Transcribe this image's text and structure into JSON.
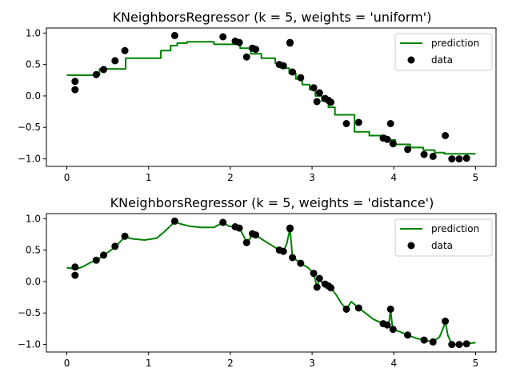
{
  "chart_data": [
    {
      "type": "line",
      "title": "KNeighborsRegressor (k = 5, weights = 'uniform')",
      "xlim": [
        -0.25,
        5.25
      ],
      "ylim": [
        -1.12,
        1.08
      ],
      "xticks": [
        0,
        1,
        2,
        3,
        4,
        5
      ],
      "yticks": [
        1.0,
        0.5,
        0.0,
        -0.5,
        -1.0
      ],
      "xtick_labels": [
        "0",
        "1",
        "2",
        "3",
        "4",
        "5"
      ],
      "ytick_labels": [
        "1.0",
        "0.5",
        "0.0",
        "−0.5",
        "−1.0"
      ],
      "grid": false,
      "legend": {
        "position": "top-right",
        "entries": [
          "prediction",
          "data"
        ]
      },
      "series": [
        {
          "name": "prediction",
          "kind": "line",
          "color": "#008000",
          "x": [
            0.0,
            0.4,
            0.4,
            0.72,
            0.72,
            1.15,
            1.15,
            1.27,
            1.27,
            1.35,
            1.35,
            1.47,
            1.47,
            1.8,
            1.8,
            2.12,
            2.12,
            2.25,
            2.25,
            2.38,
            2.38,
            2.55,
            2.55,
            2.62,
            2.62,
            2.72,
            2.72,
            2.8,
            2.8,
            2.88,
            2.88,
            2.97,
            2.97,
            3.04,
            3.04,
            3.12,
            3.12,
            3.2,
            3.2,
            3.28,
            3.28,
            3.52,
            3.52,
            3.7,
            3.7,
            3.9,
            3.9,
            4.02,
            4.02,
            4.2,
            4.2,
            4.36,
            4.36,
            4.5,
            4.5,
            4.62,
            4.62,
            5.0
          ],
          "y": [
            0.33,
            0.33,
            0.43,
            0.43,
            0.6,
            0.6,
            0.72,
            0.72,
            0.8,
            0.8,
            0.84,
            0.84,
            0.86,
            0.86,
            0.82,
            0.82,
            0.76,
            0.76,
            0.67,
            0.67,
            0.6,
            0.6,
            0.52,
            0.52,
            0.44,
            0.44,
            0.36,
            0.36,
            0.27,
            0.27,
            0.18,
            0.18,
            0.1,
            0.1,
            0.0,
            0.0,
            -0.08,
            -0.08,
            -0.18,
            -0.18,
            -0.3,
            -0.3,
            -0.57,
            -0.57,
            -0.63,
            -0.63,
            -0.7,
            -0.7,
            -0.77,
            -0.77,
            -0.82,
            -0.82,
            -0.86,
            -0.86,
            -0.9,
            -0.9,
            -0.92,
            -0.92
          ]
        },
        {
          "name": "data",
          "kind": "scatter",
          "color": "#000000",
          "x": [
            0.1,
            0.1,
            0.36,
            0.45,
            0.59,
            0.71,
            1.32,
            1.91,
            2.06,
            2.11,
            2.2,
            2.27,
            2.31,
            2.6,
            2.65,
            2.73,
            2.73,
            2.76,
            2.86,
            3.02,
            3.06,
            3.09,
            3.16,
            3.2,
            3.23,
            3.42,
            3.57,
            3.87,
            3.92,
            3.96,
            3.99,
            4.17,
            4.37,
            4.48,
            4.63,
            4.71,
            4.8,
            4.89
          ],
          "y": [
            0.23,
            0.1,
            0.34,
            0.42,
            0.56,
            0.72,
            0.96,
            0.94,
            0.87,
            0.85,
            0.62,
            0.76,
            0.74,
            0.5,
            0.48,
            0.85,
            0.84,
            0.38,
            0.29,
            0.13,
            -0.09,
            0.05,
            -0.04,
            -0.07,
            -0.1,
            -0.44,
            -0.42,
            -0.67,
            -0.69,
            -0.44,
            -0.76,
            -0.85,
            -0.93,
            -0.96,
            -0.63,
            -1.0,
            -1.0,
            -0.99
          ]
        }
      ]
    },
    {
      "type": "line",
      "title": "KNeighborsRegressor (k = 5, weights = 'distance')",
      "xlim": [
        -0.25,
        5.25
      ],
      "ylim": [
        -1.12,
        1.08
      ],
      "xticks": [
        0,
        1,
        2,
        3,
        4,
        5
      ],
      "yticks": [
        1.0,
        0.5,
        0.0,
        -0.5,
        -1.0
      ],
      "xtick_labels": [
        "0",
        "1",
        "2",
        "3",
        "4",
        "5"
      ],
      "ytick_labels": [
        "1.0",
        "0.5",
        "0.0",
        "−0.5",
        "−1.0"
      ],
      "grid": false,
      "legend": {
        "position": "top-right",
        "entries": [
          "prediction",
          "data"
        ]
      },
      "series": [
        {
          "name": "prediction",
          "kind": "line",
          "color": "#008000",
          "x": [
            0.0,
            0.05,
            0.09,
            0.1,
            0.11,
            0.2,
            0.3,
            0.36,
            0.41,
            0.45,
            0.52,
            0.59,
            0.65,
            0.71,
            0.8,
            0.95,
            1.1,
            1.2,
            1.28,
            1.32,
            1.38,
            1.5,
            1.65,
            1.8,
            1.91,
            1.98,
            2.06,
            2.11,
            2.16,
            2.2,
            2.24,
            2.27,
            2.31,
            2.4,
            2.5,
            2.6,
            2.65,
            2.69,
            2.72,
            2.73,
            2.74,
            2.76,
            2.8,
            2.86,
            2.95,
            3.02,
            3.06,
            3.09,
            3.12,
            3.16,
            3.2,
            3.23,
            3.3,
            3.36,
            3.42,
            3.48,
            3.57,
            3.65,
            3.75,
            3.87,
            3.92,
            3.945,
            3.96,
            3.975,
            3.99,
            4.08,
            4.17,
            4.27,
            4.37,
            4.48,
            4.56,
            4.61,
            4.63,
            4.66,
            4.71,
            4.8,
            4.89,
            5.0
          ],
          "y": [
            0.22,
            0.21,
            0.2,
            0.21,
            0.19,
            0.24,
            0.31,
            0.34,
            0.38,
            0.42,
            0.48,
            0.55,
            0.63,
            0.71,
            0.68,
            0.66,
            0.69,
            0.8,
            0.9,
            0.96,
            0.92,
            0.88,
            0.86,
            0.86,
            0.94,
            0.88,
            0.87,
            0.85,
            0.73,
            0.62,
            0.68,
            0.76,
            0.74,
            0.66,
            0.58,
            0.5,
            0.48,
            0.6,
            0.78,
            0.85,
            0.7,
            0.38,
            0.35,
            0.29,
            0.22,
            0.13,
            -0.09,
            0.05,
            -0.02,
            -0.04,
            -0.07,
            -0.1,
            -0.22,
            -0.35,
            -0.44,
            -0.32,
            -0.42,
            -0.5,
            -0.6,
            -0.67,
            -0.69,
            -0.62,
            -0.44,
            -0.63,
            -0.76,
            -0.8,
            -0.85,
            -0.9,
            -0.93,
            -0.96,
            -0.88,
            -0.72,
            -0.63,
            -0.85,
            -1.0,
            -1.0,
            -0.99,
            -0.97
          ]
        },
        {
          "name": "data",
          "kind": "scatter",
          "color": "#000000",
          "x": [
            0.1,
            0.1,
            0.36,
            0.45,
            0.59,
            0.71,
            1.32,
            1.91,
            2.06,
            2.11,
            2.2,
            2.27,
            2.31,
            2.6,
            2.65,
            2.73,
            2.73,
            2.76,
            2.86,
            3.02,
            3.06,
            3.09,
            3.16,
            3.2,
            3.23,
            3.42,
            3.57,
            3.87,
            3.92,
            3.96,
            3.99,
            4.17,
            4.37,
            4.48,
            4.63,
            4.71,
            4.8,
            4.89
          ],
          "y": [
            0.23,
            0.1,
            0.34,
            0.42,
            0.56,
            0.72,
            0.96,
            0.94,
            0.87,
            0.85,
            0.62,
            0.76,
            0.74,
            0.5,
            0.48,
            0.85,
            0.84,
            0.38,
            0.29,
            0.13,
            -0.09,
            0.05,
            -0.04,
            -0.07,
            -0.1,
            -0.44,
            -0.42,
            -0.67,
            -0.69,
            -0.44,
            -0.76,
            -0.85,
            -0.93,
            -0.96,
            -0.63,
            -1.0,
            -1.0,
            -0.99
          ]
        }
      ]
    }
  ]
}
